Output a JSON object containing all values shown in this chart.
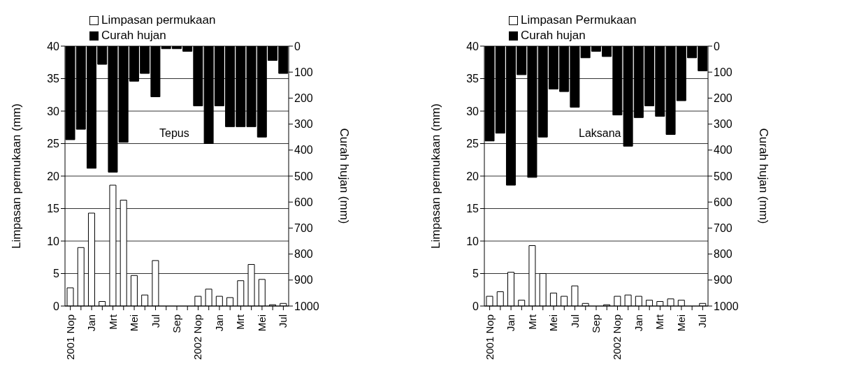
{
  "chart_data": [
    {
      "type": "bar",
      "annotations": [
        "Tepus"
      ],
      "ylabel": "Limpasan permukaan (mm)",
      "y2label": "Curah hujan (mm)",
      "categories": [
        "2001 Nop",
        null,
        "Jan",
        null,
        "Mrt",
        null,
        "Mei",
        null,
        "Jul",
        null,
        "Sep",
        null,
        "2002 Nop",
        null,
        "Jan",
        null,
        "Mrt",
        null,
        "Mei",
        null,
        "Jul"
      ],
      "series": [
        {
          "name": "Limpasan permukaan",
          "color": "#ffffff",
          "values": [
            2.8,
            9,
            14.3,
            0.7,
            18.6,
            16.3,
            4.7,
            1.7,
            7,
            0,
            0,
            0,
            1.5,
            2.6,
            1.5,
            1.3,
            3.9,
            6.4,
            4.1,
            0.2,
            0.4
          ]
        },
        {
          "name": "Curah hujan",
          "color": "#000000",
          "axis": "y2",
          "values": [
            360,
            320,
            470,
            70,
            485,
            370,
            135,
            105,
            195,
            10,
            10,
            20,
            230,
            375,
            230,
            310,
            310,
            310,
            350,
            55,
            105
          ]
        }
      ],
      "ylim": [
        0,
        40
      ],
      "yticks": [
        0,
        5,
        10,
        15,
        20,
        25,
        30,
        35,
        40
      ],
      "y2lim": [
        1000,
        0
      ],
      "y2ticks": [
        0,
        100,
        200,
        300,
        400,
        500,
        600,
        700,
        800,
        900,
        1000
      ],
      "grid": "y",
      "legend": "top"
    },
    {
      "type": "bar",
      "annotations": [
        "Laksana"
      ],
      "ylabel": "Limpasan permukaan (mm)",
      "y2label": "Curah hujan (mm)",
      "categories": [
        "2001 Nop",
        null,
        "Jan",
        null,
        "Mrt",
        null,
        "Mei",
        null,
        "Jul",
        null,
        "Sep",
        null,
        "2002 Nop",
        null,
        "Jan",
        null,
        "Mrt",
        null,
        "Mei",
        null,
        "Jul"
      ],
      "series": [
        {
          "name": "Limpasan Permukaan",
          "color": "#ffffff",
          "values": [
            1.5,
            2.2,
            5.2,
            0.9,
            9.3,
            5,
            2,
            1.5,
            3.1,
            0.4,
            0,
            0.2,
            1.5,
            1.7,
            1.5,
            0.9,
            0.7,
            1.1,
            0.9,
            0,
            0.4
          ]
        },
        {
          "name": "Curah hujan",
          "color": "#000000",
          "axis": "y2",
          "values": [
            365,
            335,
            535,
            110,
            505,
            350,
            165,
            175,
            235,
            45,
            20,
            40,
            265,
            385,
            275,
            230,
            270,
            340,
            210,
            45,
            95
          ]
        }
      ],
      "ylim": [
        0,
        40
      ],
      "yticks": [
        0,
        5,
        10,
        15,
        20,
        25,
        30,
        35,
        40
      ],
      "y2lim": [
        1000,
        0
      ],
      "y2ticks": [
        0,
        100,
        200,
        300,
        400,
        500,
        600,
        700,
        800,
        900,
        1000
      ],
      "grid": "y",
      "legend": "top"
    }
  ]
}
